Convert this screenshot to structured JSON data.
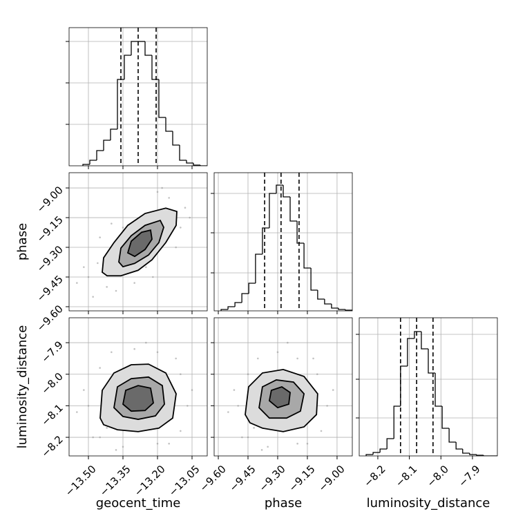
{
  "chart_data": {
    "type": "corner",
    "grid": true,
    "grid_color": "#b0b0b0",
    "hist_color": "#000000",
    "quantile_color": "#000000",
    "contour_color": "#000000",
    "contour_fills": [
      "#dcdcdc",
      "#a8a8a8",
      "#6a6a6a"
    ],
    "point_color": "#9a9a9a",
    "hist_ylim": [
      0,
      200
    ],
    "parameters": [
      {
        "label": "geocent_time",
        "lim": [
          -13.584,
          -12.984
        ],
        "ticks": [
          {
            "value": -13.5,
            "label": "−13.50"
          },
          {
            "value": -13.35,
            "label": "−13.35"
          },
          {
            "value": -13.2,
            "label": "−13.20"
          },
          {
            "value": -13.05,
            "label": "−13.05"
          }
        ],
        "hist_yticks": [
          60,
          120,
          180
        ],
        "bins": [
          -13.524,
          -13.494,
          -13.464,
          -13.434,
          -13.404,
          -13.374,
          -13.344,
          -13.314,
          -13.284,
          -13.254,
          -13.224,
          -13.194,
          -13.164,
          -13.134,
          -13.104,
          -13.074,
          -13.044,
          -13.014,
          -12.984
        ],
        "counts": [
          2,
          8,
          22,
          37,
          53,
          125,
          160,
          180,
          180,
          160,
          125,
          70,
          50,
          30,
          8,
          4,
          1,
          0
        ],
        "quantiles": [
          -13.359,
          -13.284,
          -13.206
        ]
      },
      {
        "label": "phase",
        "lim": [
          -9.621,
          -8.923
        ],
        "ticks": [
          {
            "value": -9.6,
            "label": "−9.60"
          },
          {
            "value": -9.45,
            "label": "−9.45"
          },
          {
            "value": -9.3,
            "label": "−9.30"
          },
          {
            "value": -9.15,
            "label": "−9.15"
          },
          {
            "value": -9.0,
            "label": "−9.00"
          }
        ],
        "hist_yticks": [
          55,
          113,
          170
        ],
        "bins": [
          -9.586,
          -9.551,
          -9.516,
          -9.481,
          -9.446,
          -9.412,
          -9.377,
          -9.342,
          -9.307,
          -9.272,
          -9.237,
          -9.202,
          -9.167,
          -9.132,
          -9.098,
          -9.063,
          -9.028,
          -8.993,
          -8.958,
          -8.923
        ],
        "counts": [
          2,
          6,
          12,
          25,
          40,
          82,
          120,
          170,
          182,
          165,
          130,
          98,
          62,
          30,
          17,
          10,
          4,
          2,
          1
        ],
        "quantiles": [
          -9.366,
          -9.283,
          -9.192
        ]
      },
      {
        "label": "luminosity_distance",
        "lim": [
          -8.259,
          -7.821
        ],
        "ticks": [
          {
            "value": -8.2,
            "label": "−8.2"
          },
          {
            "value": -8.1,
            "label": "−8.1"
          },
          {
            "value": -8.0,
            "label": "−8.0"
          },
          {
            "value": -7.9,
            "label": "−7.9"
          }
        ],
        "hist_yticks": [
          55,
          111,
          176
        ],
        "bins": [
          -8.237,
          -8.215,
          -8.193,
          -8.171,
          -8.149,
          -8.128,
          -8.106,
          -8.084,
          -8.062,
          -8.04,
          -8.018,
          -7.996,
          -7.974,
          -7.952,
          -7.931,
          -7.909,
          -7.887,
          -7.865,
          -7.843,
          -7.821
        ],
        "counts": [
          2,
          5,
          10,
          25,
          72,
          130,
          170,
          180,
          155,
          120,
          72,
          40,
          20,
          10,
          4,
          2,
          1,
          0,
          0
        ],
        "quantiles": [
          -8.128,
          -8.077,
          -8.025
        ]
      }
    ],
    "pairs": [
      {
        "points": {
          "x": [
            -13.5,
            -13.46,
            -13.42,
            -13.15,
            -13.08,
            -13.1,
            -13.2,
            -13.52,
            -13.38,
            -13.3,
            -13.12,
            -13.25,
            -13.45,
            -13.4,
            -13.06,
            -13.18,
            -13.48,
            -13.35,
            -13.22,
            -13.55
          ],
          "y": [
            -9.45,
            -9.38,
            -9.5,
            -9.05,
            -9.1,
            -9.2,
            -9.02,
            -9.4,
            -9.52,
            -9.48,
            -9.3,
            -9.4,
            -9.25,
            -9.18,
            -9.15,
            -9.0,
            -9.55,
            -9.2,
            -9.45,
            -9.48
          ]
        },
        "contours": [
          {
            "x": [
              -13.44,
              -13.434,
              -13.389,
              -13.329,
              -13.254,
              -13.164,
              -13.116,
              -13.119,
              -13.164,
              -13.224,
              -13.284,
              -13.359,
              -13.419
            ],
            "y": [
              -9.426,
              -9.353,
              -9.276,
              -9.189,
              -9.129,
              -9.102,
              -9.119,
              -9.189,
              -9.276,
              -9.363,
              -9.416,
              -9.444,
              -9.444
            ]
          },
          {
            "x": [
              -13.368,
              -13.359,
              -13.314,
              -13.254,
              -13.188,
              -13.173,
              -13.194,
              -13.239,
              -13.299,
              -13.35
            ],
            "y": [
              -9.374,
              -9.304,
              -9.241,
              -9.189,
              -9.164,
              -9.199,
              -9.276,
              -9.339,
              -9.381,
              -9.398
            ]
          },
          {
            "x": [
              -13.329,
              -13.314,
              -13.269,
              -13.23,
              -13.224,
              -13.254,
              -13.299
            ],
            "y": [
              -9.328,
              -9.269,
              -9.224,
              -9.213,
              -9.259,
              -9.311,
              -9.346
            ]
          }
        ]
      },
      {
        "points": {
          "x": [
            -13.5,
            -13.48,
            -13.45,
            -13.4,
            -13.3,
            -13.2,
            -13.1,
            -13.07,
            -13.1,
            -13.2,
            -13.35,
            -13.52,
            -13.05,
            -13.45,
            -13.25,
            -13.15,
            -13.55,
            -13.38,
            -13.12,
            -13.42
          ],
          "y": [
            -8.1,
            -8.2,
            -7.98,
            -7.93,
            -7.92,
            -7.93,
            -8.0,
            -8.1,
            -8.18,
            -8.22,
            -8.23,
            -8.05,
            -8.05,
            -8.2,
            -7.9,
            -8.22,
            -8.12,
            -8.24,
            -7.95,
            -8.17
          ]
        },
        "contours": [
          {
            "x": [
              -13.449,
              -13.44,
              -13.389,
              -13.314,
              -13.239,
              -13.164,
              -13.119,
              -13.134,
              -13.194,
              -13.284,
              -13.374,
              -13.434
            ],
            "y": [
              -8.139,
              -8.051,
              -7.996,
              -7.97,
              -7.968,
              -7.996,
              -8.062,
              -8.139,
              -8.171,
              -8.182,
              -8.176,
              -8.16
            ]
          },
          {
            "x": [
              -13.389,
              -13.374,
              -13.314,
              -13.239,
              -13.179,
              -13.17,
              -13.209,
              -13.284,
              -13.35
            ],
            "y": [
              -8.106,
              -8.04,
              -8.014,
              -8.009,
              -8.036,
              -8.095,
              -8.132,
              -8.143,
              -8.134
            ]
          },
          {
            "x": [
              -13.35,
              -13.338,
              -13.284,
              -13.23,
              -13.218,
              -13.254,
              -13.314
            ],
            "y": [
              -8.095,
              -8.051,
              -8.036,
              -8.044,
              -8.091,
              -8.115,
              -8.117
            ]
          }
        ]
      },
      {
        "points": {
          "x": [
            -9.5,
            -9.48,
            -9.45,
            -9.4,
            -9.3,
            -9.2,
            -9.1,
            -9.05,
            -9.08,
            -9.2,
            -9.35,
            -9.52,
            -9.02,
            -9.45,
            -9.25,
            -9.15,
            -9.55,
            -9.38,
            -9.12,
            -9.42
          ],
          "y": [
            -8.1,
            -8.2,
            -8.0,
            -7.95,
            -7.93,
            -7.95,
            -8.0,
            -8.1,
            -8.18,
            -8.22,
            -8.23,
            -8.05,
            -8.05,
            -8.2,
            -7.9,
            -8.22,
            -8.12,
            -8.24,
            -7.95,
            -8.17
          ]
        },
        "contours": [
          {
            "x": [
              -9.464,
              -9.447,
              -9.377,
              -9.272,
              -9.167,
              -9.098,
              -9.104,
              -9.167,
              -9.272,
              -9.377,
              -9.44
            ],
            "y": [
              -8.128,
              -8.04,
              -7.996,
              -7.985,
              -8.007,
              -8.062,
              -8.128,
              -8.167,
              -8.182,
              -8.171,
              -8.154
            ]
          },
          {
            "x": [
              -9.394,
              -9.377,
              -9.307,
              -9.22,
              -9.167,
              -9.185,
              -9.255,
              -9.342
            ],
            "y": [
              -8.106,
              -8.04,
              -8.018,
              -8.025,
              -8.062,
              -8.117,
              -8.139,
              -8.139
            ]
          },
          {
            "x": [
              -9.342,
              -9.332,
              -9.279,
              -9.237,
              -9.244,
              -9.3
            ],
            "y": [
              -8.084,
              -8.051,
              -8.04,
              -8.058,
              -8.095,
              -8.106
            ]
          }
        ]
      }
    ]
  }
}
